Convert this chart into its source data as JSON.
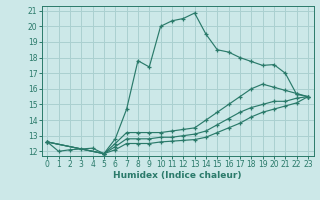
{
  "xlabel": "Humidex (Indice chaleur)",
  "ylabel": "",
  "bg_color": "#cce8e8",
  "grid_color": "#aad0d0",
  "line_color": "#2a7a6a",
  "xlim": [
    -0.5,
    23.5
  ],
  "ylim": [
    11.7,
    21.3
  ],
  "yticks": [
    12,
    13,
    14,
    15,
    16,
    17,
    18,
    19,
    20,
    21
  ],
  "xticks": [
    0,
    1,
    2,
    3,
    4,
    5,
    6,
    7,
    8,
    9,
    10,
    11,
    12,
    13,
    14,
    15,
    16,
    17,
    18,
    19,
    20,
    21,
    22,
    23
  ],
  "lines": [
    {
      "x": [
        0,
        1,
        2,
        3,
        4,
        5,
        6,
        7,
        8,
        9,
        10,
        11,
        12,
        13,
        14,
        15,
        16,
        17,
        18,
        19,
        20,
        21,
        22,
        23
      ],
      "y": [
        12.6,
        12.0,
        12.1,
        12.15,
        12.2,
        11.85,
        12.8,
        14.7,
        17.8,
        17.4,
        20.0,
        20.35,
        20.5,
        20.85,
        19.5,
        18.5,
        18.35,
        18.0,
        17.75,
        17.5,
        17.55,
        17.0,
        15.65,
        15.5
      ]
    },
    {
      "x": [
        0,
        5,
        6,
        7,
        8,
        9,
        10,
        11,
        12,
        13,
        14,
        15,
        16,
        17,
        18,
        19,
        20,
        21,
        22,
        23
      ],
      "y": [
        12.6,
        11.85,
        12.5,
        13.2,
        13.2,
        13.2,
        13.2,
        13.3,
        13.4,
        13.5,
        14.0,
        14.5,
        15.0,
        15.5,
        16.0,
        16.3,
        16.1,
        15.9,
        15.7,
        15.5
      ]
    },
    {
      "x": [
        0,
        5,
        6,
        7,
        8,
        9,
        10,
        11,
        12,
        13,
        14,
        15,
        16,
        17,
        18,
        19,
        20,
        21,
        22,
        23
      ],
      "y": [
        12.6,
        11.85,
        12.3,
        12.8,
        12.8,
        12.8,
        12.9,
        12.9,
        13.0,
        13.1,
        13.3,
        13.7,
        14.1,
        14.5,
        14.8,
        15.0,
        15.2,
        15.2,
        15.4,
        15.5
      ]
    },
    {
      "x": [
        0,
        5,
        6,
        7,
        8,
        9,
        10,
        11,
        12,
        13,
        14,
        15,
        16,
        17,
        18,
        19,
        20,
        21,
        22,
        23
      ],
      "y": [
        12.6,
        11.85,
        12.1,
        12.5,
        12.5,
        12.5,
        12.6,
        12.65,
        12.7,
        12.75,
        12.9,
        13.2,
        13.5,
        13.8,
        14.2,
        14.5,
        14.7,
        14.9,
        15.1,
        15.5
      ]
    }
  ]
}
